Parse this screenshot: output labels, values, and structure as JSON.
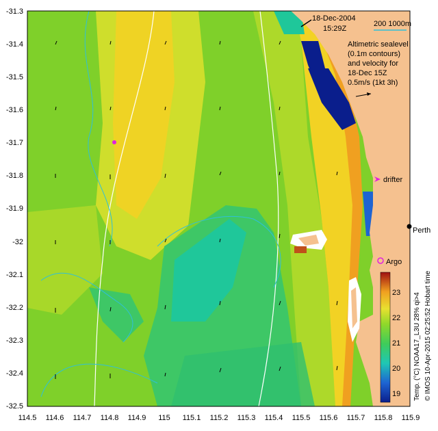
{
  "map": {
    "date": "18-Dec-2004",
    "time": "15:29Z",
    "scale_label": "200  1000m",
    "legend_text": [
      "Altimetric sealevel",
      "(0.1m contours)",
      "and velocity for",
      "18-Dec 15Z",
      "0.5m/s (1kt 3h)"
    ],
    "drifter_label": "drifter",
    "argo_label": "Argo",
    "city_label": "Perth",
    "colorbar_title": "Temp. (°C) NOAA17_L3U 28% qi>4",
    "colorbar_ticks": [
      "19",
      "20",
      "21",
      "22",
      "23"
    ],
    "credit": "© IMOS 10-Apr-2015 02:25:52 Hobart time",
    "x_ticks": [
      "114.5",
      "114.6",
      "114.7",
      "114.8",
      "114.9",
      "115",
      "115.1",
      "115.2",
      "115.3",
      "115.4",
      "115.5",
      "115.6",
      "115.7",
      "115.8",
      "115.9"
    ],
    "y_ticks": [
      "-31.3",
      "-31.4",
      "-31.5",
      "-31.6",
      "-31.7",
      "-31.8",
      "-31.9",
      "-32",
      "-32.1",
      "-32.2",
      "-32.3",
      "-32.4",
      "-32.5"
    ],
    "colors": {
      "land": "#F5C18F",
      "ocean_warm": "#F2D224",
      "ocean_mid": "#7FD02A",
      "ocean_cool": "#1FC79A",
      "cold": "#0A1E8C",
      "drifter": "#E020E0"
    }
  }
}
